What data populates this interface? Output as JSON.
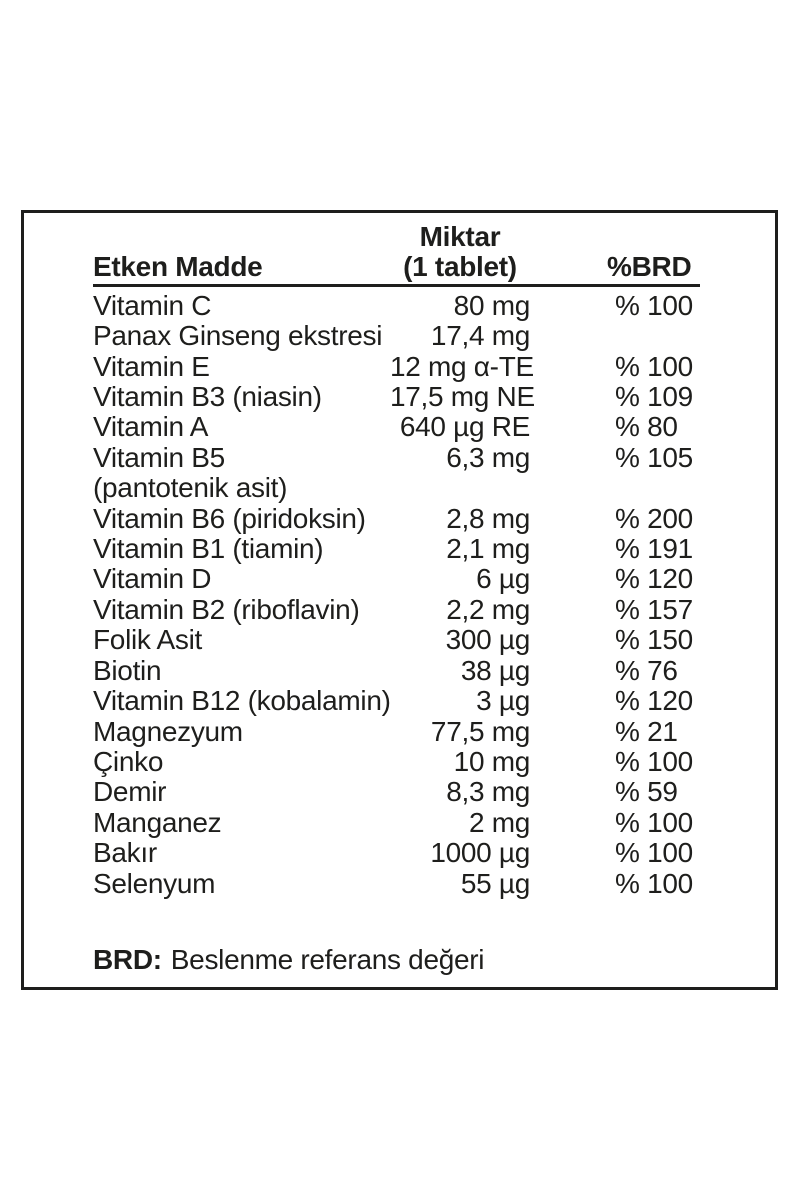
{
  "table": {
    "header": {
      "ingredient": "Etken Madde",
      "amount_line1": "Miktar",
      "amount_line2": "(1 tablet)",
      "brd": "%BRD"
    },
    "rows": [
      {
        "name": "Vitamin C",
        "amount": "80 mg",
        "brd": "% 100"
      },
      {
        "name": "Panax Ginseng ekstresi",
        "amount": "17,4 mg",
        "brd": ""
      },
      {
        "name": "Vitamin E",
        "amount": "12 mg α-TE",
        "brd": "% 100"
      },
      {
        "name": "Vitamin B3 (niasin)",
        "amount": "17,5 mg NE",
        "brd": "% 109"
      },
      {
        "name": "Vitamin A",
        "amount": "640 µg RE",
        "brd": "% 80"
      },
      {
        "name": "Vitamin B5",
        "name_line2": "(pantotenik asit)",
        "amount": "6,3 mg",
        "brd": "% 105"
      },
      {
        "name": "Vitamin B6 (piridoksin)",
        "amount": "2,8 mg",
        "brd": "% 200"
      },
      {
        "name": "Vitamin B1 (tiamin)",
        "amount": "2,1 mg",
        "brd": "% 191"
      },
      {
        "name": "Vitamin D",
        "amount": "6 µg",
        "brd": "% 120"
      },
      {
        "name": "Vitamin B2 (riboflavin)",
        "amount": "2,2 mg",
        "brd": "% 157"
      },
      {
        "name": "Folik Asit",
        "amount": "300 µg",
        "brd": "% 150"
      },
      {
        "name": "Biotin",
        "amount": "38 µg",
        "brd": "% 76"
      },
      {
        "name": "Vitamin B12 (kobalamin)",
        "amount": "3 µg",
        "brd": "% 120"
      },
      {
        "name": "Magnezyum",
        "amount": "77,5 mg",
        "brd": "% 21"
      },
      {
        "name": "Çinko",
        "amount": "10 mg",
        "brd": "% 100"
      },
      {
        "name": "Demir",
        "amount": "8,3 mg",
        "brd": "% 59"
      },
      {
        "name": "Manganez",
        "amount": "2 mg",
        "brd": "% 100"
      },
      {
        "name": "Bakır",
        "amount": "1000 µg",
        "brd": "% 100"
      },
      {
        "name": "Selenyum",
        "amount": "55 µg",
        "brd": "% 100"
      }
    ]
  },
  "footnote": {
    "label": "BRD:",
    "text": "Beslenme referans değeri"
  },
  "colors": {
    "text": "#1e1e1c",
    "border": "#1e1e1c",
    "background": "#ffffff"
  }
}
